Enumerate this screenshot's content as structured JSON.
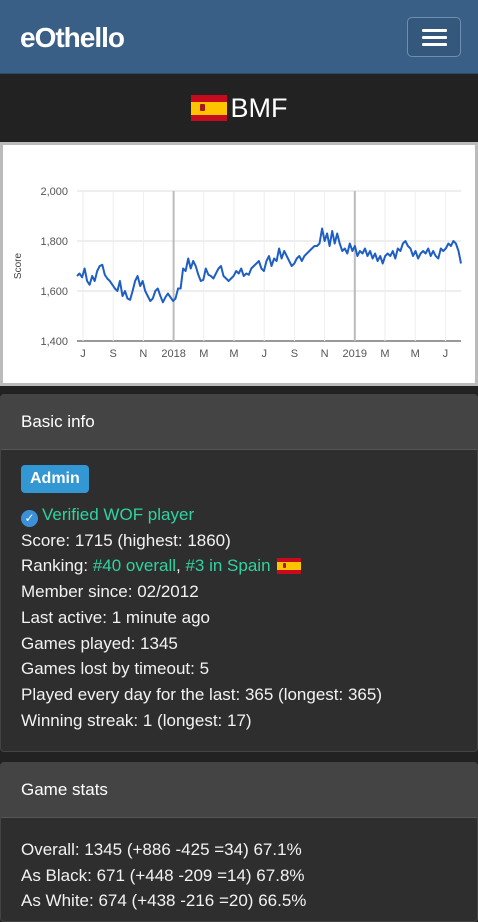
{
  "navbar": {
    "brand": "eOthello",
    "menu_icon": "hamburger-menu-icon"
  },
  "player": {
    "name": "BMF",
    "flag": "Spain",
    "flag_colors": [
      "#c60b1e",
      "#ffc400"
    ]
  },
  "chart_data": {
    "type": "line",
    "ylabel": "Score",
    "ylim": [
      1400,
      2000
    ],
    "yticks": [
      "1,400",
      "1,600",
      "1,800",
      "2,000"
    ],
    "xtick_labels": [
      "J",
      "S",
      "N",
      "2018",
      "M",
      "M",
      "J",
      "S",
      "N",
      "2019",
      "M",
      "M",
      "J"
    ],
    "line_color": "#1f5fc4",
    "series": [
      {
        "values": [
          1660,
          1670,
          1655,
          1690,
          1640,
          1625,
          1660,
          1640,
          1680,
          1700,
          1705,
          1665,
          1650,
          1640,
          1625,
          1610,
          1600,
          1640,
          1580,
          1600,
          1570,
          1565,
          1600,
          1640,
          1660,
          1620,
          1640,
          1600,
          1580,
          1560,
          1570,
          1600,
          1610,
          1580,
          1555,
          1575,
          1590,
          1575,
          1560,
          1570,
          1610,
          1610,
          1690,
          1680,
          1730,
          1690,
          1720,
          1700,
          1665,
          1640,
          1645,
          1690,
          1665,
          1660,
          1650,
          1670,
          1690,
          1700,
          1660,
          1650,
          1640,
          1650,
          1660,
          1680,
          1670,
          1690,
          1660,
          1670,
          1665,
          1690,
          1700,
          1710,
          1720,
          1690,
          1680,
          1720,
          1740,
          1700,
          1730,
          1720,
          1770,
          1730,
          1760,
          1740,
          1720,
          1700,
          1710,
          1730,
          1740,
          1720,
          1740,
          1750,
          1760,
          1770,
          1780,
          1780,
          1790,
          1850,
          1800,
          1830,
          1780,
          1840,
          1790,
          1830,
          1790,
          1760,
          1770,
          1750,
          1790,
          1760,
          1780,
          1740,
          1760,
          1750,
          1770,
          1740,
          1760,
          1730,
          1750,
          1720,
          1740,
          1710,
          1740,
          1750,
          1740,
          1760,
          1730,
          1770,
          1760,
          1790,
          1800,
          1780,
          1770,
          1740,
          1760,
          1730,
          1750,
          1760,
          1750,
          1770,
          1740,
          1760,
          1740,
          1730,
          1770,
          1760,
          1770,
          1790,
          1780,
          1800,
          1790,
          1760,
          1710
        ]
      }
    ],
    "grid": true
  },
  "basic_info": {
    "title": "Basic info",
    "badge": "Admin",
    "verified": "Verified WOF player",
    "score": "Score: 1715 (highest: 1860)",
    "ranking_prefix": "Ranking: ",
    "ranking_overall": "#40 overall",
    "ranking_sep": ", ",
    "ranking_country": "#3 in Spain",
    "member_since": "Member since: 02/2012",
    "last_active": "Last active: 1 minute ago",
    "games_played": "Games played: 1345",
    "games_lost_timeout": "Games lost by timeout: 5",
    "played_every_day": "Played every day for the last: 365 (longest: 365)",
    "winning_streak": "Winning streak: 1 (longest: 17)"
  },
  "game_stats": {
    "title": "Game stats",
    "overall": "Overall: 1345 (+886 -425 =34) 67.1%",
    "as_black": "As Black: 671 (+448 -209 =14) 67.8%",
    "as_white": "As White: 674 (+438 -216 =20) 66.5%"
  }
}
